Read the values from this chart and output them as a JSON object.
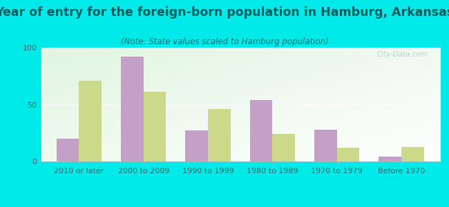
{
  "title": "Year of entry for the foreign-born population in Hamburg, Arkansas",
  "subtitle": "(Note: State values scaled to Hamburg population)",
  "categories": [
    "2010 or later",
    "2000 to 2009",
    "1990 to 1999",
    "1980 to 1989",
    "1970 to 1979",
    "Before 1970"
  ],
  "hamburg_values": [
    20,
    92,
    27,
    54,
    28,
    4
  ],
  "arkansas_values": [
    71,
    61,
    46,
    24,
    12,
    13
  ],
  "hamburg_color": "#c4a0c8",
  "arkansas_color": "#ccd88a",
  "background_outer": "#00eaea",
  "ylim": [
    0,
    100
  ],
  "yticks": [
    0,
    50,
    100
  ],
  "bar_width": 0.35,
  "title_fontsize": 12.5,
  "subtitle_fontsize": 8.5,
  "tick_fontsize": 8,
  "legend_fontsize": 9.5,
  "watermark": "City-Data.com"
}
